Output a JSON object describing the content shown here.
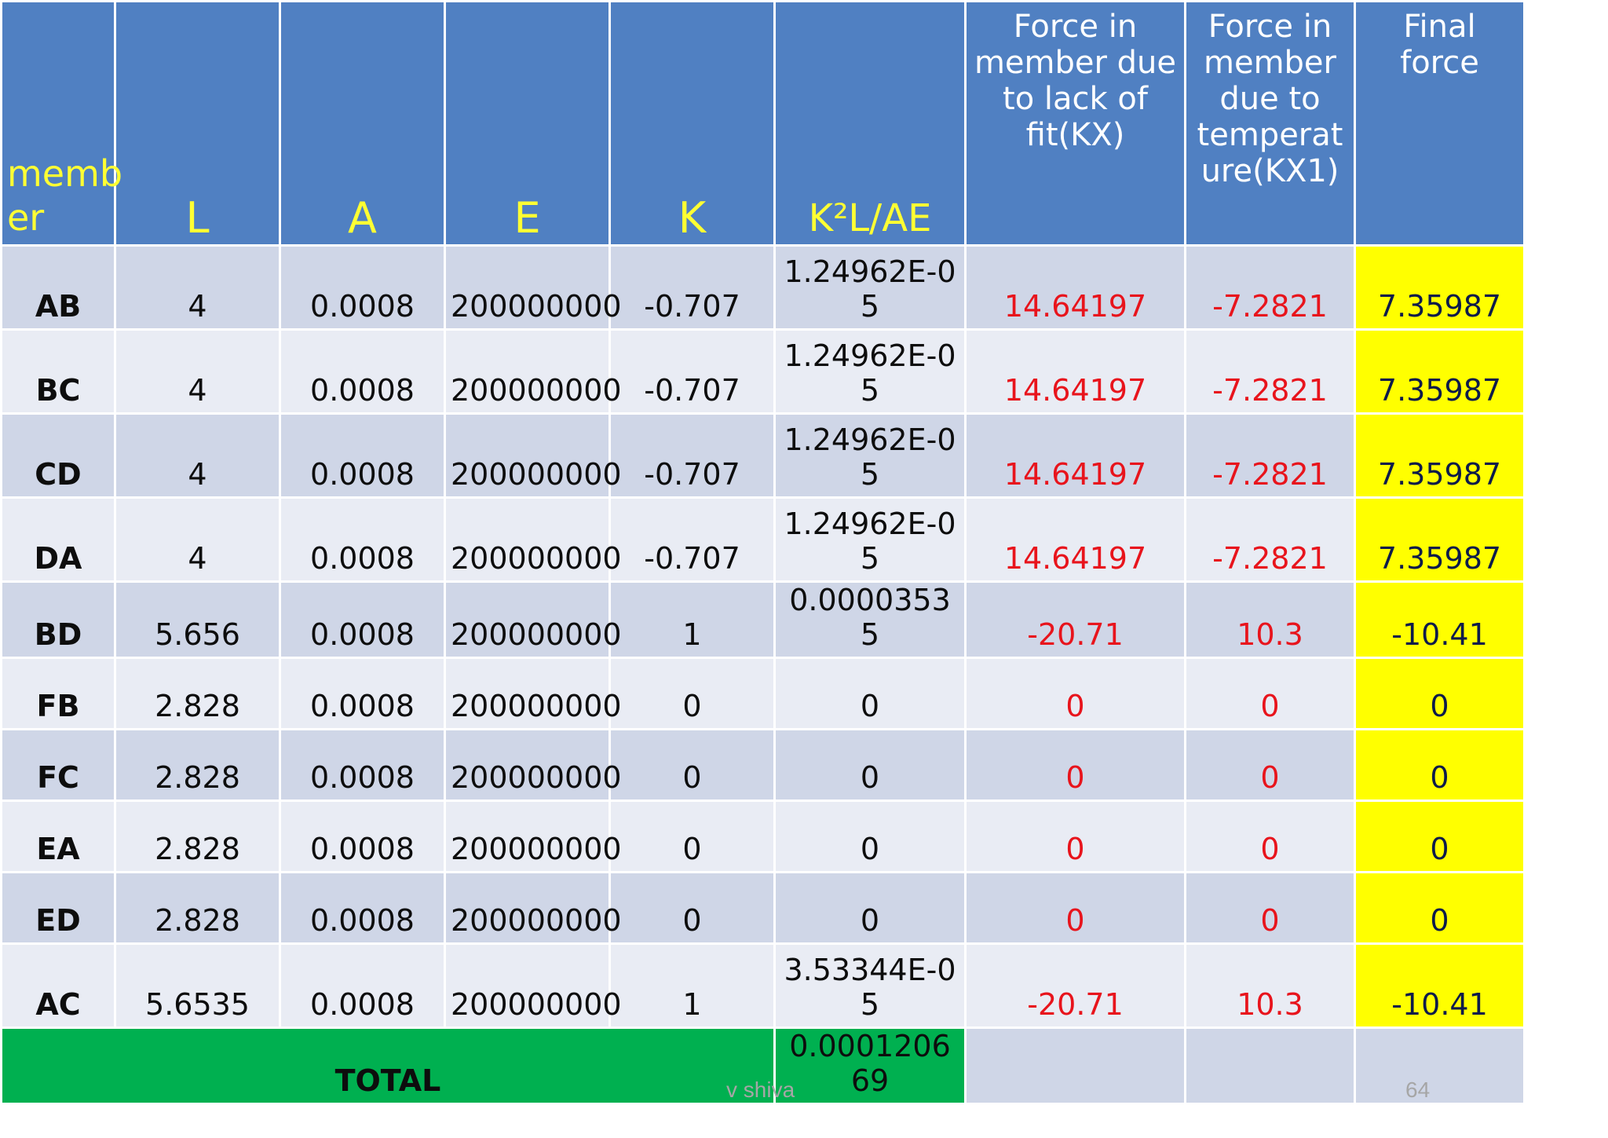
{
  "table": {
    "headers": [
      "memb er",
      "L",
      "A",
      "E",
      "K",
      "K²L/AE",
      "Force in member due to lack of fit(KX)",
      "Force in member due to temperat ure(KX1)",
      "Final force"
    ],
    "rows": [
      {
        "member": "AB",
        "L": "4",
        "A": "0.0008",
        "E": "200000000",
        "K": "-0.707",
        "k2lae": "1.24962E-05",
        "lack": "14.64197",
        "temp": "-7.2821",
        "final": "7.35987"
      },
      {
        "member": "BC",
        "L": "4",
        "A": "0.0008",
        "E": "200000000",
        "K": "-0.707",
        "k2lae": "1.24962E-05",
        "lack": "14.64197",
        "temp": "-7.2821",
        "final": "7.35987"
      },
      {
        "member": "CD",
        "L": "4",
        "A": "0.0008",
        "E": "200000000",
        "K": "-0.707",
        "k2lae": "1.24962E-05",
        "lack": "14.64197",
        "temp": "-7.2821",
        "final": "7.35987"
      },
      {
        "member": "DA",
        "L": "4",
        "A": "0.0008",
        "E": "200000000",
        "K": "-0.707",
        "k2lae": "1.24962E-05",
        "lack": "14.64197",
        "temp": "-7.2821",
        "final": "7.35987"
      },
      {
        "member": "BD",
        "L": "5.656",
        "A": "0.0008",
        "E": "200000000",
        "K": "1",
        "k2lae": "0.00003535",
        "lack": "-20.71",
        "temp": "10.3",
        "final": "-10.41"
      },
      {
        "member": "FB",
        "L": "2.828",
        "A": "0.0008",
        "E": "200000000",
        "K": "0",
        "k2lae": "0",
        "lack": "0",
        "temp": "0",
        "final": "0"
      },
      {
        "member": "FC",
        "L": "2.828",
        "A": "0.0008",
        "E": "200000000",
        "K": "0",
        "k2lae": "0",
        "lack": "0",
        "temp": "0",
        "final": "0"
      },
      {
        "member": "EA",
        "L": "2.828",
        "A": "0.0008",
        "E": "200000000",
        "K": "0",
        "k2lae": "0",
        "lack": "0",
        "temp": "0",
        "final": "0"
      },
      {
        "member": "ED",
        "L": "2.828",
        "A": "0.0008",
        "E": "200000000",
        "K": "0",
        "k2lae": "0",
        "lack": "0",
        "temp": "0",
        "final": "0"
      },
      {
        "member": "AC",
        "L": "5.6535",
        "A": "0.0008",
        "E": "200000000",
        "K": "1",
        "k2lae": "3.53344E-05",
        "lack": "-20.71",
        "temp": "10.3",
        "final": "-10.41"
      }
    ],
    "total": {
      "label": "TOTAL",
      "value": "0.000120669"
    }
  },
  "footer": {
    "author": "v shiva",
    "page": "64"
  },
  "colors": {
    "header_bg": "#5080c2",
    "header_text": "#ffff33",
    "final_bg": "#ffff00",
    "total_bg": "#00b050",
    "red_text": "#e8141c"
  }
}
